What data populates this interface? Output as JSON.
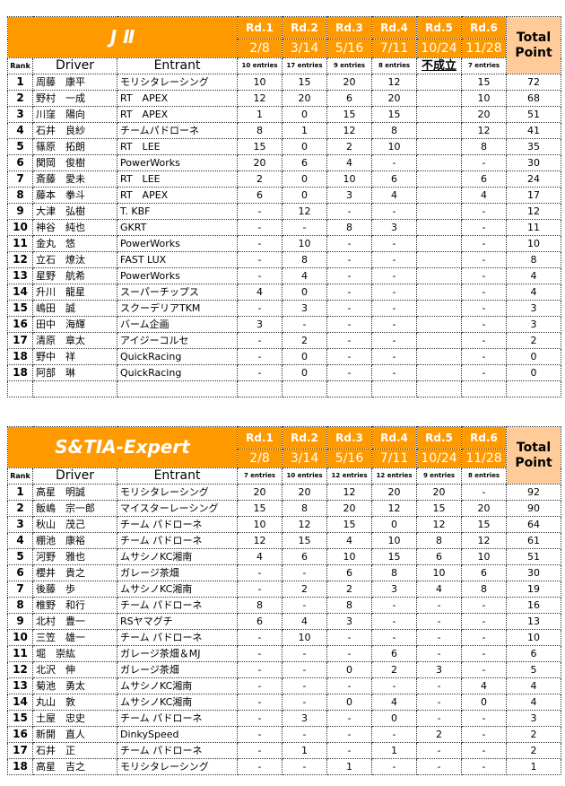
{
  "tables": [
    {
      "title": "J Ⅱ",
      "rounds": [
        "Rd.1",
        "Rd.2",
        "Rd.3",
        "Rd.4",
        "Rd.5",
        "Rd.6"
      ],
      "dates": [
        "2/8",
        "3/14",
        "5/16",
        "7/11",
        "10/24",
        "11/28"
      ],
      "entries": [
        "10 entries",
        "17 entries",
        "9 entries",
        "8 entries",
        "不成立",
        "7 entries"
      ],
      "total_label": "Total Point",
      "headers": {
        "rank": "Rank",
        "driver": "Driver",
        "entrant": "Entrant"
      },
      "rows": [
        [
          "1",
          "周藤　康平",
          "モリシタレーシング",
          "10",
          "15",
          "20",
          "12",
          "",
          "15",
          "72"
        ],
        [
          "2",
          "野村　一成",
          "RT　APEX",
          "12",
          "20",
          "6",
          "20",
          "",
          "10",
          "68"
        ],
        [
          "3",
          "川窪　陽向",
          "RT　APEX",
          "1",
          "0",
          "15",
          "15",
          "",
          "20",
          "51"
        ],
        [
          "4",
          "石井　良紗",
          "チームパドローネ",
          "8",
          "1",
          "12",
          "8",
          "",
          "12",
          "41"
        ],
        [
          "5",
          "篠原　拓朗",
          "RT　LEE",
          "15",
          "0",
          "2",
          "10",
          "",
          "8",
          "35"
        ],
        [
          "6",
          "関岡　俊樹",
          "PowerWorks",
          "20",
          "6",
          "4",
          "-",
          "",
          "-",
          "30"
        ],
        [
          "7",
          "斎藤　愛未",
          "RT　LEE",
          "2",
          "0",
          "10",
          "6",
          "",
          "6",
          "24"
        ],
        [
          "8",
          "藤本　拳斗",
          "RT　APEX",
          "6",
          "0",
          "3",
          "4",
          "",
          "4",
          "17"
        ],
        [
          "9",
          "大津　弘樹",
          "T. KBF",
          "-",
          "12",
          "-",
          "-",
          "",
          "-",
          "12"
        ],
        [
          "10",
          "神谷　純也",
          "GKRT",
          "-",
          "-",
          "8",
          "3",
          "",
          "-",
          "11"
        ],
        [
          "11",
          "金丸　悠",
          "PowerWorks",
          "-",
          "10",
          "-",
          "-",
          "",
          "-",
          "10"
        ],
        [
          "12",
          "立石　燎汰",
          "FAST LUX",
          "-",
          "8",
          "-",
          "-",
          "",
          "-",
          "8"
        ],
        [
          "13",
          "星野　航希",
          "PowerWorks",
          "-",
          "4",
          "-",
          "-",
          "",
          "-",
          "4"
        ],
        [
          "14",
          "升川　龍星",
          "スーパーチップス",
          "4",
          "0",
          "-",
          "-",
          "",
          "-",
          "4"
        ],
        [
          "15",
          "嶋田　誠",
          "スクーデリアTKM",
          "-",
          "3",
          "-",
          "-",
          "",
          "-",
          "3"
        ],
        [
          "16",
          "田中　海輝",
          "バーム企画",
          "3",
          "-",
          "-",
          "-",
          "",
          "-",
          "3"
        ],
        [
          "17",
          "清原　章太",
          "アイジーコルセ",
          "-",
          "2",
          "-",
          "-",
          "",
          "-",
          "2"
        ],
        [
          "18",
          "野中　祥",
          "QuickRacing",
          "-",
          "0",
          "-",
          "-",
          "",
          "-",
          "0"
        ],
        [
          "18",
          "阿部　琳",
          "QuickRacing",
          "-",
          "0",
          "-",
          "-",
          "",
          "-",
          "0"
        ],
        [
          "",
          "",
          "",
          "",
          "",
          "",
          "",
          "",
          "",
          ""
        ]
      ]
    },
    {
      "title": "S&TIA-Expert",
      "rounds": [
        "Rd.1",
        "Rd.2",
        "Rd.3",
        "Rd.4",
        "Rd.5",
        "Rd.6"
      ],
      "dates": [
        "2/8",
        "3/14",
        "5/16",
        "7/11",
        "10/24",
        "11/28"
      ],
      "entries": [
        "7 entries",
        "10 entries",
        "12 entries",
        "12 entries",
        "9 entries",
        "8 entries"
      ],
      "total_label": "Total Point",
      "headers": {
        "rank": "Rank",
        "driver": "Driver",
        "entrant": "Entrant"
      },
      "rows": [
        [
          "1",
          "高星　明誠",
          "モリシタレーシング",
          "20",
          "20",
          "12",
          "20",
          "20",
          "-",
          "92"
        ],
        [
          "2",
          "飯嶋　宗一郎",
          "マイスターレーシング",
          "15",
          "8",
          "20",
          "12",
          "15",
          "20",
          "90"
        ],
        [
          "3",
          "秋山　茂己",
          "チーム パドローネ",
          "10",
          "12",
          "15",
          "0",
          "12",
          "15",
          "64"
        ],
        [
          "4",
          "棚池　康裕",
          "チーム パドローネ",
          "12",
          "15",
          "4",
          "10",
          "8",
          "12",
          "61"
        ],
        [
          "5",
          "河野　雅也",
          "ムサシノKC湘南",
          "4",
          "6",
          "10",
          "15",
          "6",
          "10",
          "51"
        ],
        [
          "6",
          "櫻井　貴之",
          "ガレージ茶畑",
          "-",
          "-",
          "6",
          "8",
          "10",
          "6",
          "30"
        ],
        [
          "7",
          "後藤　歩",
          "ムサシノKC湘南",
          "-",
          "2",
          "2",
          "3",
          "4",
          "8",
          "19"
        ],
        [
          "8",
          "椎野　和行",
          "チーム パドローネ",
          "8",
          "-",
          "8",
          "-",
          "-",
          "-",
          "16"
        ],
        [
          "9",
          "北村　豊一",
          "RSヤマグチ",
          "6",
          "4",
          "3",
          "-",
          "-",
          "-",
          "13"
        ],
        [
          "10",
          "三笠　雄一",
          "チーム パドローネ",
          "-",
          "10",
          "-",
          "-",
          "-",
          "-",
          "10"
        ],
        [
          "11",
          "堀　崇紘",
          "ガレージ茶畑＆MJ",
          "-",
          "-",
          "-",
          "6",
          "-",
          "-",
          "6"
        ],
        [
          "12",
          "北沢　伸",
          "ガレージ茶畑",
          "-",
          "-",
          "0",
          "2",
          "3",
          "-",
          "5"
        ],
        [
          "13",
          "菊池　勇太",
          "ムサシノKC湘南",
          "-",
          "-",
          "-",
          "-",
          "-",
          "4",
          "4"
        ],
        [
          "14",
          "丸山　敦",
          "ムサシノKC湘南",
          "-",
          "-",
          "0",
          "4",
          "-",
          "0",
          "4"
        ],
        [
          "15",
          "土屋　忠史",
          "チーム パドローネ",
          "-",
          "3",
          "-",
          "0",
          "-",
          "-",
          "3"
        ],
        [
          "16",
          "新開　直人",
          "DinkySpeed",
          "-",
          "-",
          "-",
          "-",
          "2",
          "-",
          "2"
        ],
        [
          "17",
          "石井　正",
          "チーム パドローネ",
          "-",
          "1",
          "-",
          "1",
          "-",
          "-",
          "2"
        ],
        [
          "18",
          "高星　吉之",
          "モリシタレーシング",
          "-",
          "-",
          "1",
          "-",
          "-",
          "-",
          "1"
        ]
      ]
    }
  ],
  "colors": {
    "header_orange": "#ff9900",
    "total_bg": "#ffcc99"
  }
}
